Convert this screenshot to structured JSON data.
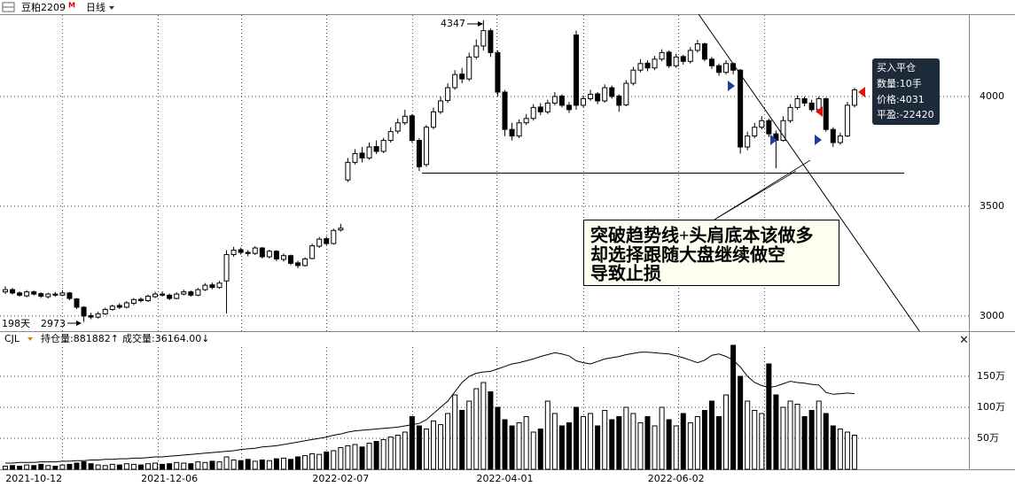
{
  "header": {
    "symbol": "豆粕2209",
    "badge": "M",
    "period": "日线"
  },
  "chart_data": [
    {
      "type": "candlestick",
      "open": [
        3110,
        3120,
        3105,
        3092,
        3110,
        3102,
        3088,
        3100,
        3095,
        3105,
        3078,
        3040,
        3002,
        2995,
        3010,
        3030,
        3048,
        3040,
        3058,
        3076,
        3070,
        3088,
        3100,
        3095,
        3080,
        3100,
        3110,
        3095,
        3120,
        3142,
        3130,
        3160,
        3280,
        3302,
        3290,
        3285,
        3310,
        3270,
        3295,
        3258,
        3275,
        3242,
        3230,
        3262,
        3318,
        3352,
        3330,
        3392,
        3620,
        3700,
        3742,
        3720,
        3772,
        3750,
        3800,
        3842,
        3880,
        3912,
        3800,
        3690,
        3860,
        3930,
        3982,
        4040,
        4102,
        4080,
        4180,
        4230,
        4300,
        4200,
        4020,
        3850,
        3820,
        3880,
        3900,
        3952,
        3930,
        3970,
        4002,
        3960,
        4280,
        3960,
        3990,
        4012,
        3980,
        4040,
        4002,
        3962,
        4060,
        4120,
        4152,
        4130,
        4170,
        4202,
        4140,
        4182,
        4160,
        4210,
        4240,
        4170,
        4140,
        4110,
        4150,
        4120,
        3770,
        3820,
        3860,
        3890,
        3830,
        3800,
        3890,
        3950,
        3990,
        3970,
        3940,
        3990,
        3850,
        3790,
        3820,
        3960
      ],
      "high": [
        3135,
        3128,
        3112,
        3118,
        3116,
        3108,
        3106,
        3110,
        3118,
        3110,
        3082,
        3045,
        3015,
        3020,
        3038,
        3052,
        3058,
        3068,
        3082,
        3085,
        3098,
        3110,
        3112,
        3102,
        3108,
        3120,
        3116,
        3128,
        3150,
        3152,
        3160,
        3300,
        3315,
        3312,
        3300,
        3318,
        3314,
        3302,
        3300,
        3285,
        3280,
        3252,
        3268,
        3330,
        3360,
        3362,
        3398,
        3420,
        3720,
        3760,
        3770,
        3790,
        3800,
        3812,
        3860,
        3900,
        3940,
        3920,
        3810,
        3870,
        3950,
        4000,
        4060,
        4120,
        4130,
        4200,
        4260,
        4347,
        4310,
        4210,
        4030,
        3880,
        3895,
        3920,
        3965,
        3970,
        3985,
        4020,
        4010,
        3975,
        4300,
        4005,
        4030,
        4020,
        4055,
        4050,
        4010,
        4075,
        4135,
        4170,
        4165,
        4185,
        4215,
        4210,
        4195,
        4190,
        4225,
        4258,
        4245,
        4180,
        4150,
        4165,
        4155,
        4125,
        3840,
        3880,
        3910,
        3900,
        3845,
        3910,
        3965,
        4005,
        4000,
        3985,
        4000,
        3995,
        3860,
        3835,
        3975,
        4040
      ],
      "low": [
        3100,
        3098,
        3088,
        3085,
        3094,
        3082,
        3080,
        3088,
        3090,
        3072,
        3032,
        2973,
        2985,
        2988,
        3005,
        3024,
        3032,
        3035,
        3050,
        3062,
        3064,
        3082,
        3088,
        3072,
        3076,
        3094,
        3088,
        3090,
        3114,
        3122,
        3124,
        3012,
        3270,
        3280,
        3272,
        3278,
        3262,
        3262,
        3250,
        3248,
        3232,
        3218,
        3225,
        3258,
        3310,
        3322,
        3325,
        3385,
        3610,
        3690,
        3700,
        3712,
        3738,
        3742,
        3790,
        3830,
        3870,
        3790,
        3660,
        3680,
        3850,
        3920,
        3970,
        4030,
        4060,
        4070,
        4170,
        4210,
        4180,
        4000,
        3820,
        3800,
        3810,
        3870,
        3890,
        3915,
        3920,
        3960,
        3950,
        3925,
        3940,
        3950,
        3980,
        3965,
        3972,
        3990,
        3930,
        3955,
        4050,
        4110,
        4115,
        4120,
        4160,
        4130,
        4130,
        4145,
        4150,
        4200,
        4160,
        4125,
        4095,
        4100,
        4100,
        3740,
        3755,
        3810,
        3850,
        3815,
        3673,
        3795,
        3880,
        3940,
        3955,
        3930,
        3930,
        3840,
        3770,
        3780,
        3815,
        3950
      ],
      "close": [
        3120,
        3105,
        3095,
        3110,
        3100,
        3090,
        3100,
        3095,
        3105,
        3080,
        3040,
        3000,
        2995,
        3010,
        3030,
        3045,
        3040,
        3060,
        3075,
        3070,
        3090,
        3100,
        3095,
        3080,
        3100,
        3110,
        3095,
        3120,
        3140,
        3130,
        3150,
        3280,
        3300,
        3290,
        3285,
        3310,
        3270,
        3295,
        3260,
        3275,
        3240,
        3230,
        3260,
        3320,
        3350,
        3330,
        3390,
        3400,
        3700,
        3740,
        3720,
        3770,
        3750,
        3800,
        3840,
        3880,
        3910,
        3800,
        3680,
        3860,
        3930,
        3980,
        4040,
        4100,
        4080,
        4180,
        4230,
        4300,
        4200,
        4020,
        3850,
        3820,
        3880,
        3900,
        3950,
        3930,
        3970,
        4000,
        3960,
        3940,
        3960,
        3990,
        4010,
        3980,
        4040,
        4000,
        3960,
        4060,
        4120,
        4150,
        4130,
        4170,
        4200,
        4140,
        4180,
        4160,
        4210,
        4240,
        4170,
        4140,
        4110,
        4150,
        4120,
        3770,
        3820,
        3860,
        3890,
        3830,
        3800,
        3890,
        3950,
        3990,
        3970,
        3940,
        3990,
        3850,
        3790,
        3820,
        3960,
        4030
      ],
      "colors": {
        "up": "#ffffff",
        "down": "#000000",
        "outline": "#000000"
      },
      "ylim": [
        2931,
        4375
      ],
      "yticks": [
        3000,
        3500,
        4000
      ],
      "grid": true,
      "annotations": {
        "peak": 4347,
        "low_days": "198天",
        "low": 2973,
        "note": [
          "突破趋势线+头肩底本该做多",
          "却选择跟随大盘继续做空",
          "导致止损"
        ]
      },
      "tooltip": [
        "买入平仓",
        "数量:10手",
        "价格:4031",
        "平盈:-22420"
      ]
    },
    {
      "type": "volume",
      "labels": [
        "CJL",
        "持仓量:881882↑",
        "成交量:36164.00↓"
      ],
      "categories": [
        null,
        null,
        null,
        null,
        "2021-10-12",
        null,
        null,
        null,
        null,
        null,
        null,
        null,
        null,
        null,
        null,
        null,
        null,
        null,
        null,
        null,
        null,
        null,
        null,
        "2021-12-06",
        null,
        null,
        null,
        null,
        null,
        null,
        null,
        null,
        null,
        null,
        null,
        null,
        null,
        null,
        null,
        null,
        null,
        null,
        null,
        null,
        null,
        null,
        null,
        "2022-02-07",
        null,
        null,
        null,
        null,
        null,
        null,
        null,
        null,
        null,
        null,
        null,
        null,
        null,
        null,
        null,
        null,
        null,
        null,
        null,
        null,
        null,
        null,
        "2022-04-01",
        null,
        null,
        null,
        null,
        null,
        null,
        null,
        null,
        null,
        null,
        null,
        null,
        null,
        null,
        null,
        null,
        null,
        null,
        null,
        null,
        null,
        null,
        null,
        "2022-06-02",
        null,
        null,
        null,
        null,
        null,
        null,
        null,
        null,
        null,
        null,
        null,
        null,
        null,
        null,
        null,
        null,
        null,
        null,
        null,
        null,
        null,
        null,
        null,
        null,
        null
      ],
      "volume": [
        5,
        6,
        5,
        7,
        6,
        8,
        6,
        5,
        7,
        8,
        10,
        12,
        9,
        7,
        6,
        8,
        7,
        9,
        8,
        7,
        9,
        10,
        8,
        9,
        11,
        10,
        9,
        12,
        11,
        13,
        12,
        20,
        15,
        14,
        16,
        13,
        15,
        14,
        17,
        18,
        16,
        20,
        22,
        25,
        24,
        28,
        30,
        35,
        38,
        40,
        36,
        42,
        45,
        48,
        52,
        55,
        60,
        85,
        70,
        65,
        78,
        72,
        90,
        120,
        95,
        110,
        130,
        140,
        125,
        100,
        80,
        70,
        75,
        85,
        60,
        65,
        110,
        90,
        70,
        75,
        100,
        85,
        90,
        70,
        95,
        80,
        85,
        100,
        90,
        75,
        85,
        70,
        100,
        80,
        70,
        90,
        75,
        85,
        95,
        110,
        85,
        120,
        200,
        150,
        110,
        95,
        90,
        170,
        120,
        100,
        110,
        105,
        85,
        95,
        110,
        90,
        70,
        65,
        60,
        55
      ],
      "open_interest": [
        10,
        10,
        11,
        11,
        11,
        12,
        12,
        12,
        13,
        13,
        14,
        14,
        15,
        15,
        16,
        16,
        17,
        17,
        18,
        18,
        19,
        20,
        20,
        21,
        22,
        23,
        24,
        25,
        26,
        27,
        28,
        29,
        30,
        32,
        33,
        34,
        36,
        37,
        38,
        40,
        42,
        44,
        46,
        48,
        50,
        52,
        55,
        57,
        60,
        62,
        63,
        64,
        65,
        66,
        67,
        68,
        70,
        72,
        74,
        80,
        90,
        100,
        110,
        125,
        140,
        150,
        155,
        157,
        158,
        162,
        166,
        170,
        172,
        175,
        178,
        182,
        185,
        188,
        186,
        183,
        175,
        172,
        170,
        174,
        178,
        180,
        182,
        185,
        187,
        189,
        189,
        188,
        187,
        186,
        183,
        180,
        176,
        172,
        176,
        184,
        186,
        182,
        176,
        165,
        150,
        140,
        135,
        132,
        134,
        138,
        142,
        140,
        139,
        137,
        136,
        124,
        121,
        122,
        123,
        122
      ],
      "line_color": "#000000",
      "ylim": [
        0,
        200
      ],
      "yticks": [
        {
          "value": 50,
          "label": "50万"
        },
        {
          "value": 100,
          "label": "100万"
        },
        {
          "value": 150,
          "label": "150万"
        }
      ],
      "grid": true
    }
  ]
}
